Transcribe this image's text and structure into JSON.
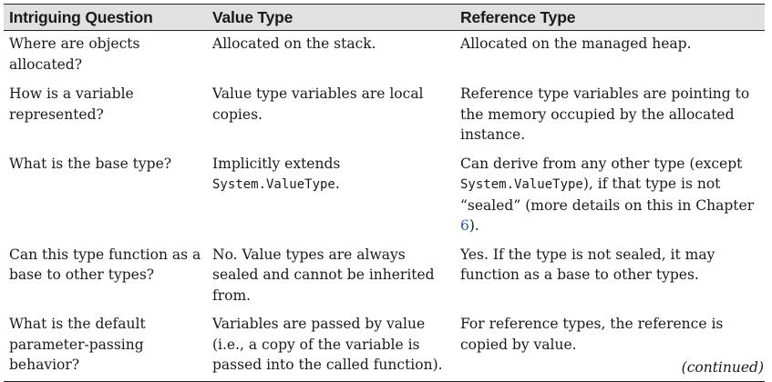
{
  "table": {
    "headers": [
      "Intriguing Question",
      "Value Type",
      "Reference Type"
    ],
    "rows": [
      {
        "question": "Where are objects allocated?",
        "value": "Allocated on the stack.",
        "reference": "Allocated on the managed heap."
      },
      {
        "question": "How is a variable represented?",
        "value": "Value type variables are local copies.",
        "reference": "Reference type variables are pointing to the memory occupied by the allocated instance."
      },
      {
        "question": "What is the base type?",
        "value_pre": "Implicitly extends ",
        "value_code": "System.ValueType",
        "value_post": ".",
        "reference_pre": "Can derive from any other type (except ",
        "reference_code": "System.ValueType",
        "reference_mid": "), if that type is not “sealed” (more details on this in Chapter ",
        "reference_link": "6",
        "reference_post": ")."
      },
      {
        "question": "Can this type function as a base to other types?",
        "value": "No. Value types are always sealed and cannot be inherited from.",
        "reference": "Yes. If the type is not sealed, it may function as a base to other types."
      },
      {
        "question": "What is the default parameter-passing behavior?",
        "value": "Variables are passed by value (i.e., a copy of the variable is passed into the called function).",
        "reference": "For reference types, the reference is copied by value."
      }
    ]
  },
  "footer": {
    "continued": "(continued)"
  }
}
